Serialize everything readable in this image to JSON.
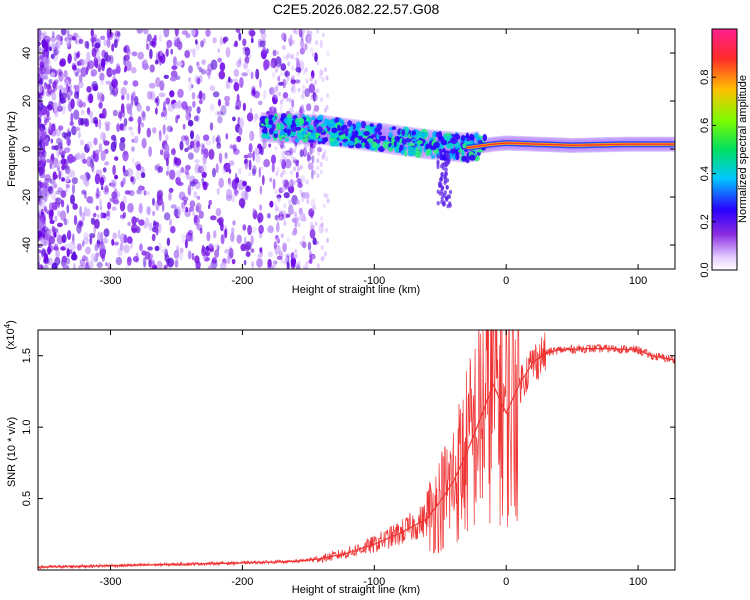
{
  "chart_data": [
    {
      "type": "heatmap",
      "title": "C2E5.2026.082.22.57.G08",
      "xlabel": "Height of straight line (km)",
      "ylabel": "Frequency (Hz)",
      "xlim": [
        -355,
        128
      ],
      "ylim": [
        -50,
        50
      ],
      "x_ticks": [
        -300,
        -200,
        -100,
        0,
        100
      ],
      "y_ticks": [
        -40,
        -20,
        0,
        20,
        40
      ],
      "colorbar": {
        "label": "Normalized spectral amplitude",
        "range": [
          0,
          1
        ],
        "ticks": [
          "0.0",
          "0.2",
          "0.4",
          "0.6",
          "0.8"
        ],
        "tick_values": [
          0,
          0.2,
          0.4,
          0.6,
          0.8
        ]
      },
      "ridge": [
        {
          "x": -180,
          "y": 9
        },
        {
          "x": -140,
          "y": 8
        },
        {
          "x": -100,
          "y": 5
        },
        {
          "x": -60,
          "y": 2
        },
        {
          "x": -30,
          "y": 0.5
        },
        {
          "x": -10,
          "y": 2
        },
        {
          "x": 0,
          "y": 2.5
        },
        {
          "x": 50,
          "y": 1.5
        },
        {
          "x": 90,
          "y": 2
        },
        {
          "x": 128,
          "y": 2
        }
      ]
    },
    {
      "type": "line",
      "xlabel": "Height of straight line (km)",
      "ylabel": "SNR (10 * v/v)",
      "y_multiplier": "(x10",
      "y_multiplier_exp": "4",
      "y_multiplier_close": ")",
      "xlim": [
        -355,
        128
      ],
      "ylim": [
        0,
        1.68
      ],
      "x_ticks": [
        -300,
        -200,
        -100,
        0,
        100
      ],
      "y_ticks": [
        0.5,
        1.0,
        1.5
      ],
      "y_tick_labels": [
        "0.5",
        "1.0",
        "1.5"
      ],
      "series": [
        {
          "color": "#ee3333",
          "x": [
            -355,
            -300,
            -250,
            -200,
            -160,
            -140,
            -120,
            -100,
            -80,
            -60,
            -50,
            -40,
            -30,
            -20,
            -10,
            0,
            10,
            20,
            30,
            40,
            60,
            80,
            100,
            110,
            128
          ],
          "y": [
            0.02,
            0.03,
            0.04,
            0.05,
            0.06,
            0.08,
            0.12,
            0.18,
            0.26,
            0.36,
            0.48,
            0.62,
            0.82,
            1.05,
            1.3,
            1.1,
            1.3,
            1.45,
            1.52,
            1.54,
            1.55,
            1.55,
            1.54,
            1.5,
            1.47
          ]
        }
      ]
    }
  ]
}
